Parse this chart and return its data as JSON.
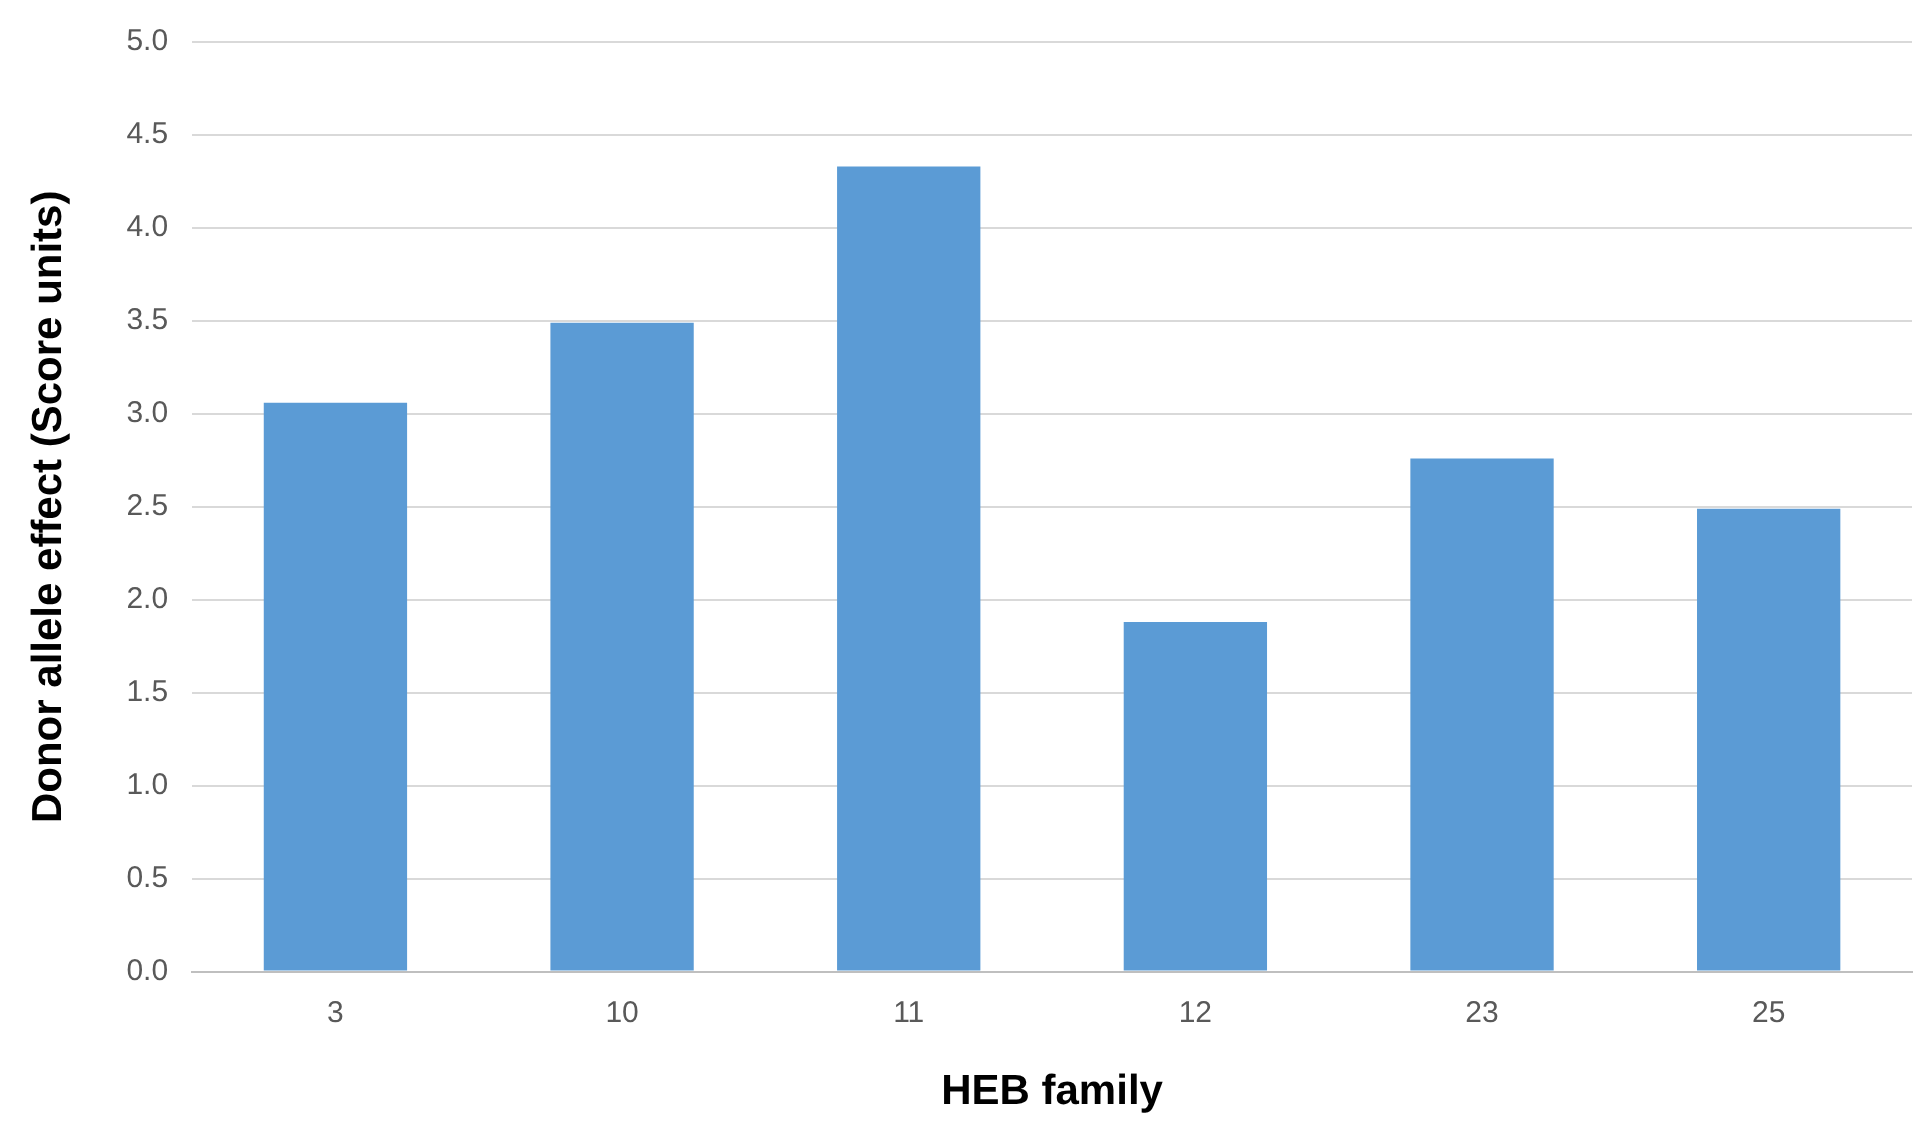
{
  "chart_data": {
    "type": "bar",
    "xlabel": "HEB family",
    "ylabel": "Donor allele effect (Score units)",
    "categories": [
      "3",
      "10",
      "11",
      "12",
      "23",
      "25"
    ],
    "values": [
      3.06,
      3.49,
      4.33,
      1.88,
      2.76,
      2.49
    ],
    "color": "#5b9bd5",
    "ylim": [
      0,
      5
    ],
    "yticks": [
      {
        "value": 0,
        "label": "0.0"
      },
      {
        "value": 0.5,
        "label": "0.5"
      },
      {
        "value": 1,
        "label": "1.0"
      },
      {
        "value": 1.5,
        "label": "1.5"
      },
      {
        "value": 2,
        "label": "2.0"
      },
      {
        "value": 2.5,
        "label": "2.5"
      },
      {
        "value": 3,
        "label": "3.0"
      },
      {
        "value": 3.5,
        "label": "3.5"
      },
      {
        "value": 4,
        "label": "4.0"
      },
      {
        "value": 4.5,
        "label": "4.5"
      },
      {
        "value": 5,
        "label": "5.0"
      }
    ],
    "grid": "y",
    "legend": false
  }
}
